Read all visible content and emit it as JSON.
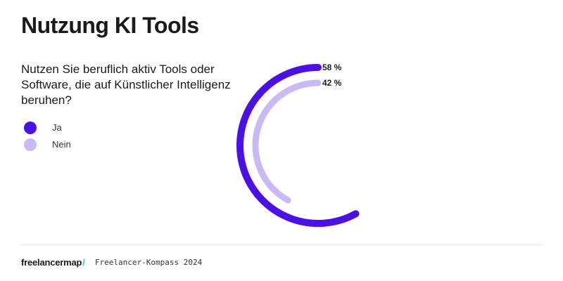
{
  "header": {
    "title": "Nutzung KI Tools"
  },
  "question": "Nutzen Sie beruflich aktiv Tools oder Software, die auf Künstlicher Intelligenz beruhen?",
  "colors": {
    "ja": "#4b0fe8",
    "nein": "#cbb9f7"
  },
  "chart_data": {
    "type": "radial-bar",
    "series": [
      {
        "name": "Ja",
        "value": 58,
        "label": "58 %"
      },
      {
        "name": "Nein",
        "value": 42,
        "label": "42 %"
      }
    ],
    "legend_position": "left"
  },
  "footer": {
    "brand": "freelancermap",
    "brand_mark": "/",
    "source": "Freelancer-Kompass 2024"
  }
}
